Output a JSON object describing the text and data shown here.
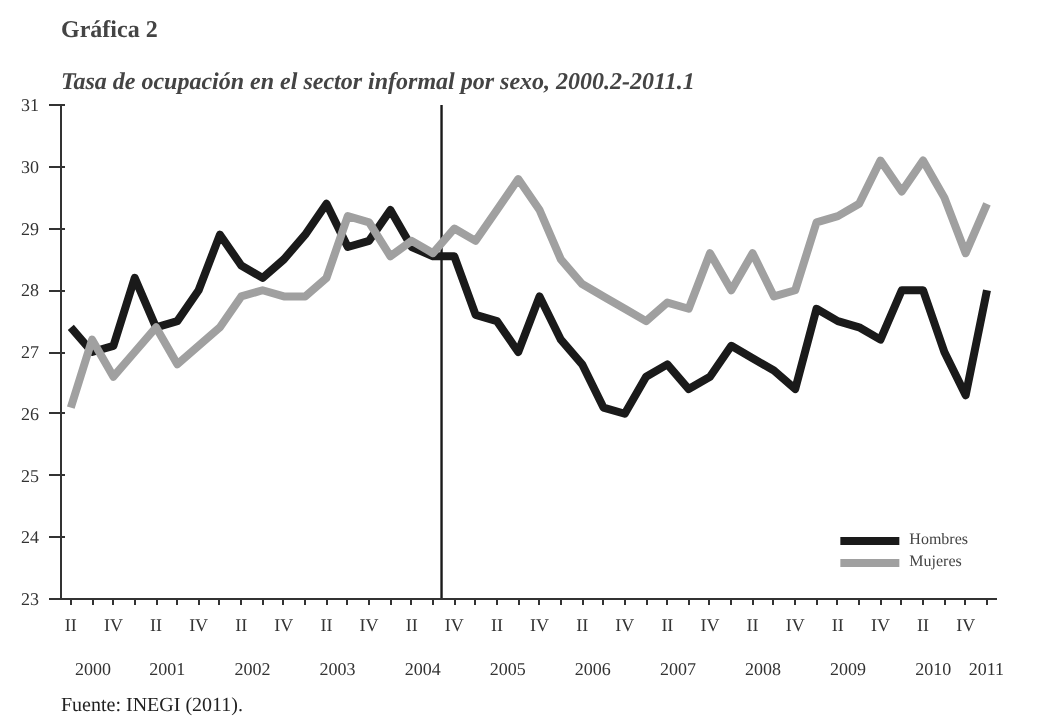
{
  "chart_data": {
    "type": "line",
    "title": "Gráfica 2",
    "subtitle": "Tasa de ocupación en el sector informal por sexo, 2000.2-2011.1",
    "categories": [
      "II",
      null,
      "IV",
      null,
      "II",
      null,
      "IV",
      null,
      "II",
      null,
      "IV",
      null,
      "II",
      null,
      "IV",
      null,
      "II",
      null,
      "IV",
      null,
      "II",
      null,
      "IV",
      null,
      "II",
      null,
      "IV",
      null,
      "II",
      null,
      "IV",
      null,
      "II",
      null,
      "IV",
      null,
      "II",
      null,
      "IV",
      null,
      "II",
      null,
      "IV",
      null
    ],
    "series": [
      {
        "name": "Hombres",
        "color": "#1a1a1a",
        "values": [
          27.4,
          27.0,
          27.1,
          28.2,
          27.4,
          27.5,
          28.0,
          28.9,
          28.4,
          28.2,
          28.5,
          28.9,
          29.4,
          28.7,
          28.8,
          29.3,
          28.7,
          28.55,
          28.55,
          27.6,
          27.5,
          27.0,
          27.9,
          27.2,
          26.8,
          26.1,
          26.0,
          26.6,
          26.8,
          26.4,
          26.6,
          27.1,
          26.9,
          26.7,
          26.4,
          27.7,
          27.5,
          27.4,
          27.2,
          28.0,
          28.0,
          27.0,
          26.3,
          28.0
        ]
      },
      {
        "name": "Mujeres",
        "color": "#a0a0a0",
        "values": [
          26.1,
          27.2,
          26.6,
          27.0,
          27.4,
          26.8,
          27.1,
          27.4,
          27.9,
          28.0,
          27.9,
          27.9,
          28.2,
          29.2,
          29.1,
          28.55,
          28.8,
          28.6,
          29.0,
          28.8,
          29.3,
          29.8,
          29.3,
          28.5,
          28.1,
          27.9,
          27.7,
          27.5,
          27.8,
          27.7,
          28.6,
          28.0,
          28.6,
          27.9,
          28.0,
          29.1,
          29.2,
          29.4,
          30.1,
          29.6,
          30.1,
          29.5,
          28.6,
          29.4
        ]
      }
    ],
    "x2lim": [
      2000.125,
      2011.125
    ],
    "x2ticks": [
      {
        "value": 2000.5,
        "label": "2000"
      },
      {
        "value": 2001.375,
        "label": "2001"
      },
      {
        "value": 2002.375,
        "label": "2002"
      },
      {
        "value": 2003.375,
        "label": "2003"
      },
      {
        "value": 2004.375,
        "label": "2004"
      },
      {
        "value": 2005.375,
        "label": "2005"
      },
      {
        "value": 2006.375,
        "label": "2006"
      },
      {
        "value": 2007.375,
        "label": "2007"
      },
      {
        "value": 2008.375,
        "label": "2008"
      },
      {
        "value": 2009.375,
        "label": "2009"
      },
      {
        "value": 2010.375,
        "label": "2010"
      },
      {
        "value": 2011.0,
        "label": "2011"
      }
    ],
    "ylim": [
      23,
      31
    ],
    "yticks": [
      23,
      24,
      25,
      26,
      27,
      28,
      29,
      30,
      31
    ],
    "grid": false,
    "legend": "bottom right",
    "marker": "none",
    "line_style": "solid",
    "annotations": [
      "Fuente: INEGI (2011)."
    ]
  }
}
